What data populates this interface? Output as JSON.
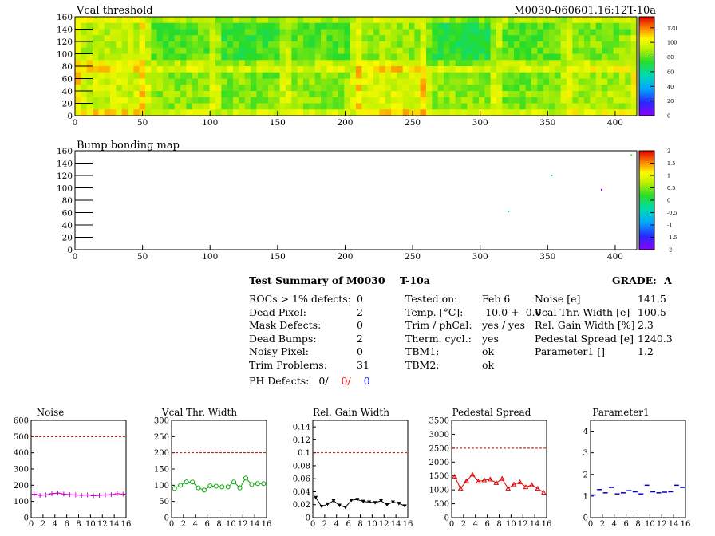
{
  "header": {
    "title": "Vcal threshold",
    "module_id": "M0030-060601.16:12T-10a"
  },
  "summary": {
    "title": "Test Summary of M0030",
    "module_type": "T-10a",
    "grade_label": "GRADE:",
    "grade": "A",
    "defects": [
      {
        "label": "ROCs > 1% defects:",
        "value": "0"
      },
      {
        "label": "Dead Pixel:",
        "value": "2"
      },
      {
        "label": "Mask Defects:",
        "value": "0"
      },
      {
        "label": "Dead Bumps:",
        "value": "2"
      },
      {
        "label": "Noisy Pixel:",
        "value": "0"
      },
      {
        "label": "Trim Problems:",
        "value": "31"
      }
    ],
    "ph_defects": {
      "label": "PH Defects:",
      "v1": "0/",
      "v2": "0/",
      "v3": "0",
      "c2": "#ff0000",
      "c3": "#0000ff"
    },
    "conditions": [
      {
        "label": "Tested on:",
        "value": "Feb 6"
      },
      {
        "label": "Temp. [°C]:",
        "value": "-10.0 +- 0.0"
      },
      {
        "label": "Trim / phCal:",
        "value": "yes / yes"
      },
      {
        "label": "Therm. cycl.:",
        "value": "yes"
      },
      {
        "label": "TBM1:",
        "value": "ok"
      },
      {
        "label": "TBM2:",
        "value": "ok"
      }
    ],
    "results": [
      {
        "label": "Noise [e]",
        "value": "141.5"
      },
      {
        "label": "Vcal Thr. Width [e]",
        "value": "100.5"
      },
      {
        "label": "Rel. Gain Width [%]",
        "value": "2.3"
      },
      {
        "label": "Pedestal Spread [e]",
        "value": "1240.3"
      },
      {
        "label": "Parameter1 []",
        "value": "1.2"
      }
    ]
  },
  "chart_data": [
    {
      "type": "heatmap",
      "title": "Vcal threshold",
      "xlim": [
        0,
        416
      ],
      "ylim": [
        0,
        160
      ],
      "x_ticks": [
        "0",
        "50",
        "100",
        "150",
        "200",
        "250",
        "300",
        "350",
        "400"
      ],
      "y_ticks": [
        "0",
        "20",
        "40",
        "60",
        "80",
        "100",
        "120",
        "140",
        "160"
      ],
      "colorbar_ticks": [
        "0",
        "20",
        "40",
        "60",
        "80",
        "100",
        "120"
      ],
      "zlim": [
        0,
        135
      ],
      "roc_grid": {
        "cols": 8,
        "rows": 2
      },
      "roc_means_top": [
        92,
        80,
        76,
        80,
        88,
        72,
        80,
        84
      ],
      "roc_means_bottom": [
        96,
        86,
        84,
        86,
        98,
        86,
        84,
        90
      ]
    },
    {
      "type": "heatmap",
      "title": "Bump bonding map",
      "xlim": [
        0,
        416
      ],
      "ylim": [
        0,
        160
      ],
      "x_ticks": [
        "0",
        "50",
        "100",
        "150",
        "200",
        "250",
        "300",
        "350",
        "400"
      ],
      "y_ticks": [
        "0",
        "20",
        "40",
        "60",
        "80",
        "100",
        "120",
        "140",
        "160"
      ],
      "colorbar_ticks": [
        "-2",
        "-1.5",
        "-1",
        "-0.5",
        "0",
        "0.5",
        "1",
        "1.5",
        "2"
      ],
      "zlim": [
        -2,
        2
      ],
      "points": [
        {
          "x": 412,
          "y": 153,
          "z": 0.3
        },
        {
          "x": 353,
          "y": 120,
          "z": -0.4
        },
        {
          "x": 390,
          "y": 97,
          "z": -2
        },
        {
          "x": 321,
          "y": 62,
          "z": -0.6
        }
      ]
    },
    {
      "type": "line",
      "title": "Noise",
      "x_ticks": [
        "0",
        "2",
        "4",
        "6",
        "8",
        "10",
        "12",
        "14",
        "16"
      ],
      "y_ticks": [
        "0",
        "100",
        "200",
        "300",
        "400",
        "500",
        "600"
      ],
      "xlim": [
        0,
        16
      ],
      "ylim": [
        0,
        600
      ],
      "reference": 500,
      "marker": "cross",
      "color": "#cc00cc",
      "values": [
        145,
        138,
        140,
        148,
        152,
        146,
        142,
        140,
        138,
        140,
        135,
        138,
        140,
        142,
        148,
        145
      ]
    },
    {
      "type": "line",
      "title": "Vcal Thr. Width",
      "x_ticks": [
        "0",
        "2",
        "4",
        "6",
        "8",
        "10",
        "12",
        "14",
        "16"
      ],
      "y_ticks": [
        "0",
        "50",
        "100",
        "150",
        "200",
        "250",
        "300"
      ],
      "xlim": [
        0,
        16
      ],
      "ylim": [
        0,
        300
      ],
      "reference": 200,
      "marker": "circle",
      "color": "#00aa00",
      "values": [
        90,
        100,
        110,
        110,
        92,
        85,
        98,
        97,
        95,
        95,
        110,
        92,
        122,
        102,
        105,
        105
      ]
    },
    {
      "type": "line",
      "title": "Rel. Gain Width",
      "x_ticks": [
        "0",
        "2",
        "4",
        "6",
        "8",
        "10",
        "12",
        "14",
        "16"
      ],
      "y_ticks": [
        "0",
        "0.02",
        "0.04",
        "0.06",
        "0.08",
        "0.1",
        "0.12",
        "0.14"
      ],
      "xlim": [
        0,
        16
      ],
      "ylim": [
        0,
        0.15
      ],
      "reference": 0.1,
      "marker": "triangle-down",
      "color": "#000000",
      "values": [
        0.031,
        0.017,
        0.021,
        0.026,
        0.019,
        0.016,
        0.027,
        0.028,
        0.025,
        0.024,
        0.023,
        0.026,
        0.02,
        0.024,
        0.022,
        0.018
      ]
    },
    {
      "type": "line",
      "title": "Pedestal Spread",
      "x_ticks": [
        "0",
        "2",
        "4",
        "6",
        "8",
        "10",
        "12",
        "14",
        "16"
      ],
      "y_ticks": [
        "0",
        "500",
        "1000",
        "1500",
        "2000",
        "2500",
        "3000",
        "3500"
      ],
      "xlim": [
        0,
        16
      ],
      "ylim": [
        0,
        3500
      ],
      "reference": 2500,
      "marker": "triangle-up",
      "color": "#dd0000",
      "values": [
        1480,
        1050,
        1320,
        1550,
        1300,
        1350,
        1380,
        1250,
        1400,
        1050,
        1200,
        1280,
        1100,
        1180,
        1050,
        900
      ]
    },
    {
      "type": "scatter",
      "title": "Parameter1",
      "x_ticks": [
        "0",
        "2",
        "4",
        "6",
        "8",
        "10",
        "12",
        "14",
        "16"
      ],
      "y_ticks": [
        "0",
        "1",
        "2",
        "3",
        "4"
      ],
      "xlim": [
        0,
        16
      ],
      "ylim": [
        0,
        4.5
      ],
      "marker": "dash",
      "color": "#0000cc",
      "values": [
        1.05,
        1.3,
        1.15,
        1.4,
        1.1,
        1.15,
        1.25,
        1.2,
        1.1,
        1.5,
        1.2,
        1.15,
        1.18,
        1.2,
        1.5,
        1.4
      ]
    }
  ]
}
